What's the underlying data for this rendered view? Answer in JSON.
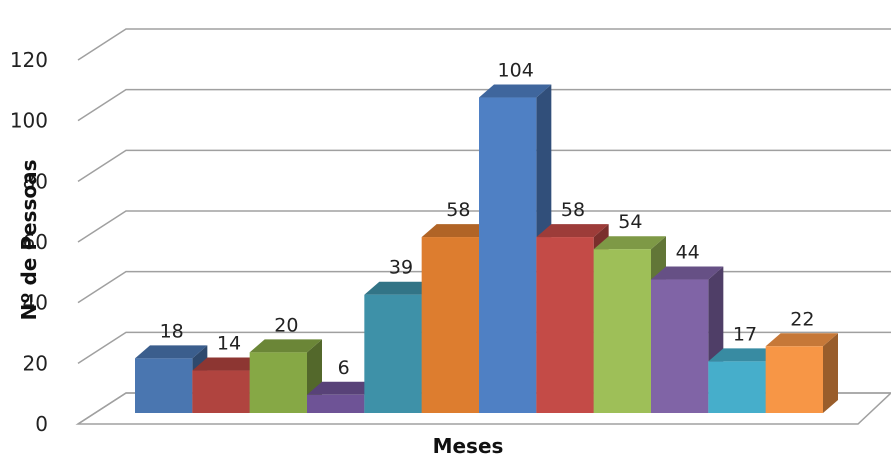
{
  "chart_data": {
    "type": "bar",
    "style": "3d-clustered-column",
    "xlabel": "Meses",
    "ylabel": "Nº de Pessoas",
    "ylim": [
      0,
      120
    ],
    "yticks": [
      0,
      20,
      40,
      60,
      80,
      100,
      120
    ],
    "grid": true,
    "legend": "none",
    "values": [
      18,
      14,
      20,
      6,
      39,
      58,
      104,
      58,
      54,
      44,
      17,
      22
    ],
    "colors": [
      "#4a76b0",
      "#b0443f",
      "#86a845",
      "#6e5396",
      "#3e91a8",
      "#dd7d2f",
      "#4f80c4",
      "#c44b47",
      "#9ebf58",
      "#8064a6",
      "#46aecb",
      "#f79646"
    ]
  }
}
